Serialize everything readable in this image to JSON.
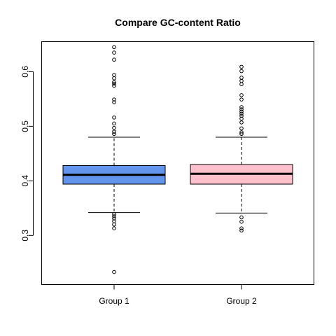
{
  "chart_data": {
    "type": "boxplot",
    "title": "Compare GC-content Ratio",
    "xlabel": "",
    "ylabel": "",
    "ylim": [
      0.21,
      0.655
    ],
    "yticks": [
      0.3,
      0.4,
      0.5,
      0.6
    ],
    "ytick_labels": [
      "0.3",
      "0.4",
      "0.5",
      "0.6"
    ],
    "categories": [
      "Group 1",
      "Group 2"
    ],
    "boxes": [
      {
        "category": "Group 1",
        "color": "#6495ED",
        "whisker_low": 0.342,
        "q1": 0.394,
        "median": 0.411,
        "q3": 0.428,
        "whisker_high": 0.48,
        "outliers": [
          0.645,
          0.635,
          0.622,
          0.594,
          0.588,
          0.581,
          0.578,
          0.574,
          0.549,
          0.544,
          0.516,
          0.505,
          0.497,
          0.49,
          0.486,
          0.339,
          0.335,
          0.331,
          0.326,
          0.32,
          0.313,
          0.233
        ]
      },
      {
        "category": "Group 2",
        "color": "#FFC0CB",
        "whisker_low": 0.341,
        "q1": 0.394,
        "median": 0.413,
        "q3": 0.43,
        "whisker_high": 0.48,
        "outliers": [
          0.609,
          0.601,
          0.589,
          0.583,
          0.577,
          0.557,
          0.549,
          0.535,
          0.531,
          0.527,
          0.523,
          0.519,
          0.514,
          0.507,
          0.496,
          0.489,
          0.486,
          0.333,
          0.325,
          0.313,
          0.309
        ]
      }
    ]
  }
}
